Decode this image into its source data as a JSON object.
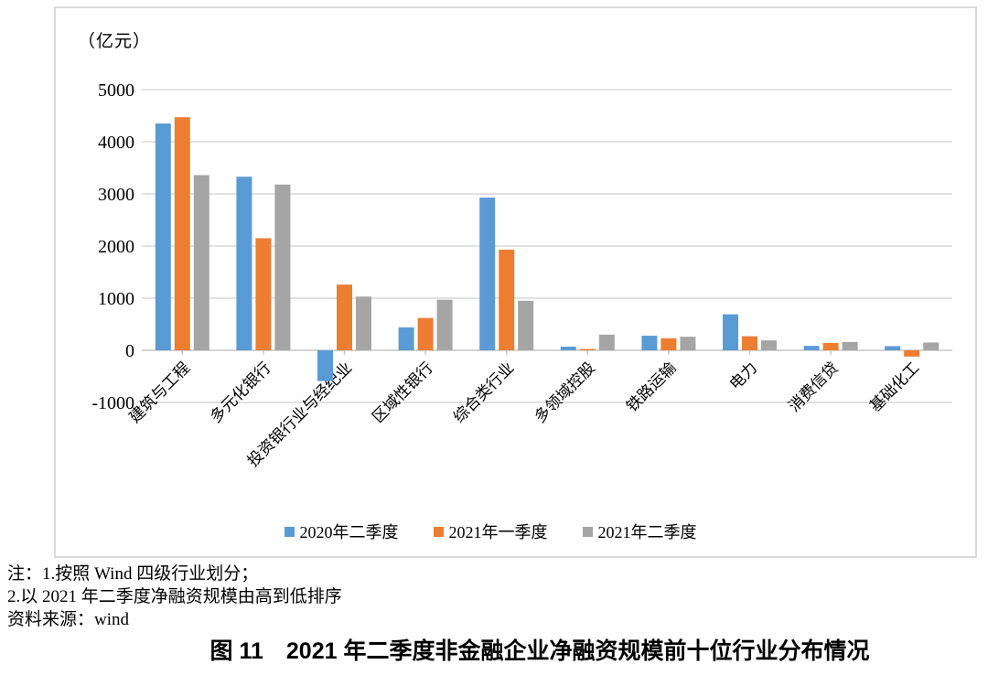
{
  "chart_data": {
    "type": "bar",
    "unit": "（亿元）",
    "categories": [
      "建筑与工程",
      "多元化银行",
      "投资银行业与经纪业",
      "区域性银行",
      "综合类行业",
      "多领域控股",
      "铁路运输",
      "电力",
      "消费信贷",
      "基础化工"
    ],
    "series": [
      {
        "name": "2020年二季度",
        "color": "#5B9BD5",
        "values": [
          4350,
          3330,
          -590,
          440,
          2930,
          70,
          280,
          690,
          85,
          80
        ]
      },
      {
        "name": "2021年一季度",
        "color": "#ED7D31",
        "values": [
          4470,
          2150,
          1260,
          620,
          1930,
          25,
          230,
          270,
          140,
          -120
        ]
      },
      {
        "name": "2021年二季度",
        "color": "#A5A5A5",
        "values": [
          3360,
          3180,
          1030,
          970,
          950,
          300,
          260,
          190,
          160,
          150
        ]
      }
    ],
    "ylim": [
      -1000,
      5000
    ],
    "yticks": [
      5000,
      4000,
      3000,
      2000,
      1000,
      0,
      -1000
    ],
    "grid": true,
    "grid_color": "#D9D9D9",
    "axis_color": "#C6C6C6",
    "legend_position": "bottom"
  },
  "notes": {
    "line1": "注：1.按照 Wind 四级行业划分；",
    "line2": "2.以 2021 年二季度净融资规模由高到低排序",
    "line3": "资料来源：wind"
  },
  "caption": "图 11　2021 年二季度非金融企业净融资规模前十位行业分布情况"
}
